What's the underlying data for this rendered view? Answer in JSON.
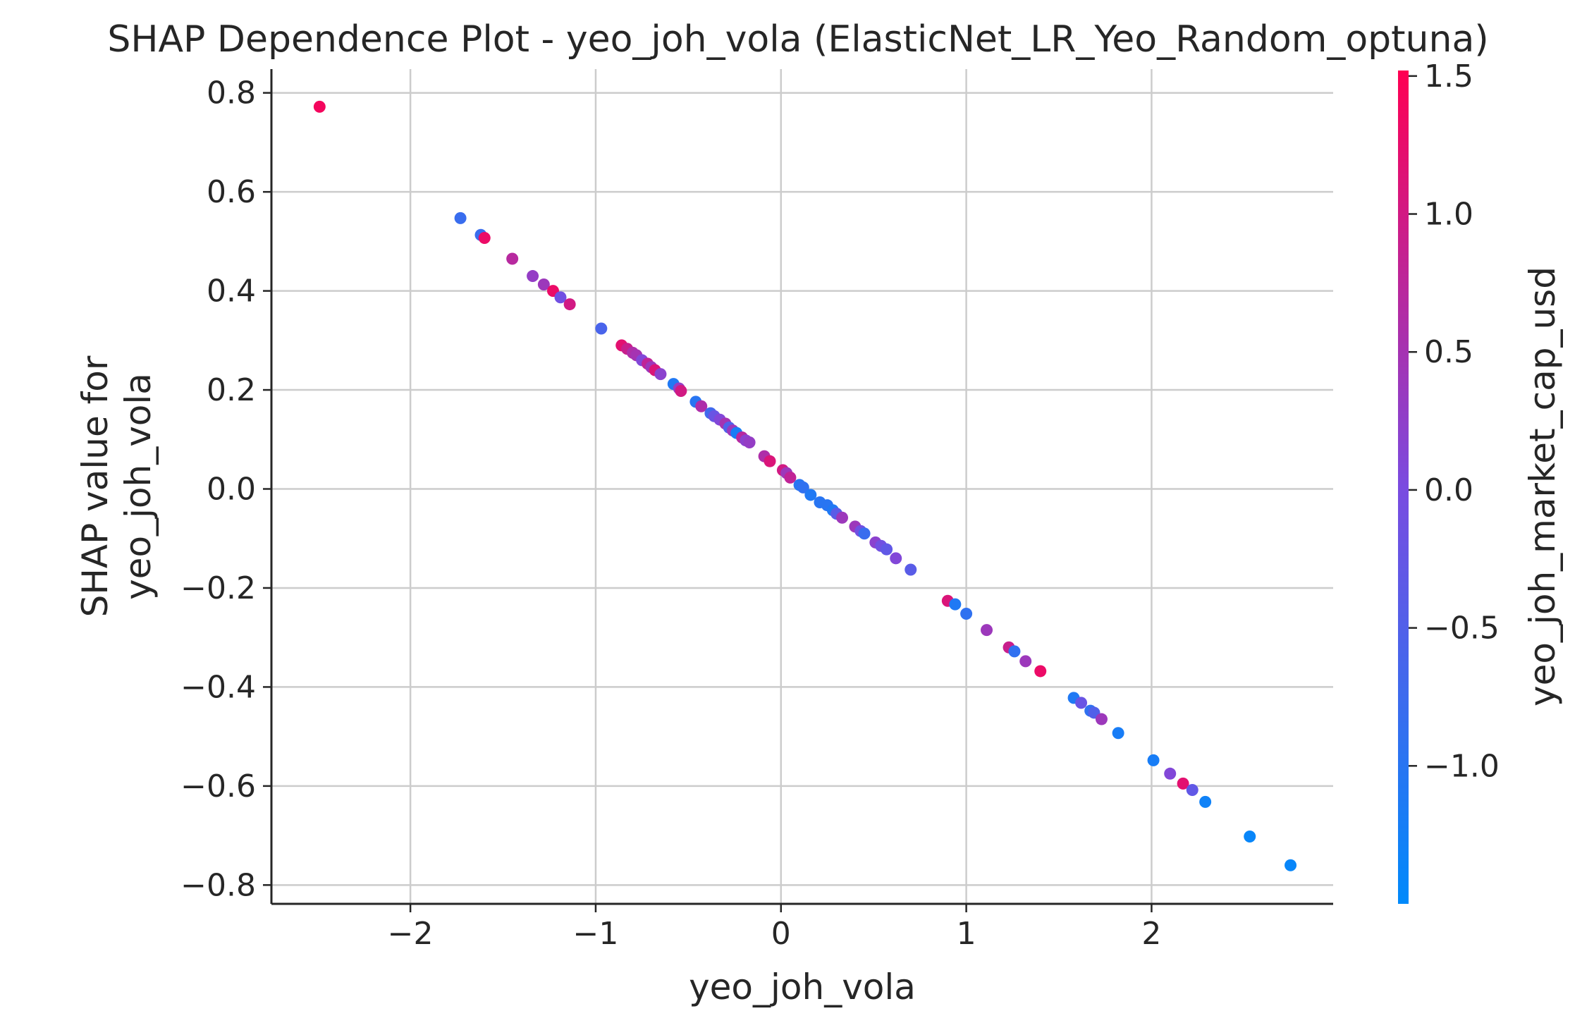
{
  "chart_data": {
    "type": "scatter",
    "title": "SHAP Dependence Plot - yeo_joh_vola (ElasticNet_LR_Yeo_Random_optuna)",
    "xlabel": "yeo_joh_vola",
    "ylabel_lines": [
      "SHAP value for",
      "yeo_joh_vola"
    ],
    "xlim": [
      -2.75,
      2.98
    ],
    "ylim": [
      -0.838,
      0.848
    ],
    "xticks": [
      -2,
      -1,
      0,
      1,
      2
    ],
    "xtick_labels": [
      "−2",
      "−1",
      "0",
      "1",
      "2"
    ],
    "yticks": [
      0.8,
      0.6,
      0.4,
      0.2,
      0.0,
      -0.2,
      -0.4,
      -0.6,
      -0.8
    ],
    "ytick_labels": [
      "0.8",
      "0.6",
      "0.4",
      "0.2",
      "0.0",
      "−0.2",
      "−0.4",
      "−0.6",
      "−0.8"
    ],
    "grid": true,
    "colorbar": {
      "label": "yeo_joh_market_cap_usd",
      "range": [
        -1.5,
        1.52
      ],
      "ticks": [
        1.5,
        1.0,
        0.5,
        0.0,
        -0.5,
        -1.0
      ],
      "tick_labels": [
        "1.5",
        "1.0",
        "0.5",
        "0.0",
        "−0.5",
        "−1.0"
      ],
      "color_low": "#008afb",
      "color_mid": "#7a4be0",
      "color_high": "#ff0052"
    },
    "points": [
      {
        "x": -2.49,
        "y": 0.772,
        "c": 1.4
      },
      {
        "x": -1.73,
        "y": 0.547,
        "c": -0.8
      },
      {
        "x": -1.62,
        "y": 0.513,
        "c": -0.8
      },
      {
        "x": -1.6,
        "y": 0.507,
        "c": 1.3
      },
      {
        "x": -1.45,
        "y": 0.465,
        "c": 0.7
      },
      {
        "x": -1.34,
        "y": 0.43,
        "c": 0.3
      },
      {
        "x": -1.28,
        "y": 0.413,
        "c": 0.4
      },
      {
        "x": -1.23,
        "y": 0.4,
        "c": 1.3
      },
      {
        "x": -1.19,
        "y": 0.387,
        "c": -0.1
      },
      {
        "x": -1.14,
        "y": 0.373,
        "c": 1.0
      },
      {
        "x": -0.97,
        "y": 0.324,
        "c": -0.6
      },
      {
        "x": -0.86,
        "y": 0.29,
        "c": 1.2
      },
      {
        "x": -0.83,
        "y": 0.283,
        "c": 0.9
      },
      {
        "x": -0.8,
        "y": 0.275,
        "c": 0.6
      },
      {
        "x": -0.78,
        "y": 0.27,
        "c": 0.5
      },
      {
        "x": -0.75,
        "y": 0.26,
        "c": 0.1
      },
      {
        "x": -0.72,
        "y": 0.253,
        "c": 0.8
      },
      {
        "x": -0.7,
        "y": 0.246,
        "c": 0.4
      },
      {
        "x": -0.68,
        "y": 0.24,
        "c": 1.1
      },
      {
        "x": -0.65,
        "y": 0.232,
        "c": 0.2
      },
      {
        "x": -0.58,
        "y": 0.212,
        "c": -1.1
      },
      {
        "x": -0.55,
        "y": 0.203,
        "c": 0.3
      },
      {
        "x": -0.54,
        "y": 0.198,
        "c": 1.0
      },
      {
        "x": -0.46,
        "y": 0.176,
        "c": -1.0
      },
      {
        "x": -0.43,
        "y": 0.167,
        "c": 0.6
      },
      {
        "x": -0.38,
        "y": 0.153,
        "c": -0.7
      },
      {
        "x": -0.36,
        "y": 0.147,
        "c": -0.2
      },
      {
        "x": -0.33,
        "y": 0.14,
        "c": 0.1
      },
      {
        "x": -0.3,
        "y": 0.132,
        "c": 0.5
      },
      {
        "x": -0.28,
        "y": 0.124,
        "c": -0.5
      },
      {
        "x": -0.26,
        "y": 0.118,
        "c": 0.4
      },
      {
        "x": -0.24,
        "y": 0.113,
        "c": -1.2
      },
      {
        "x": -0.21,
        "y": 0.104,
        "c": 0.7
      },
      {
        "x": -0.19,
        "y": 0.098,
        "c": 0.2
      },
      {
        "x": -0.17,
        "y": 0.094,
        "c": 0.3
      },
      {
        "x": -0.09,
        "y": 0.066,
        "c": 0.6
      },
      {
        "x": -0.06,
        "y": 0.056,
        "c": 1.1
      },
      {
        "x": 0.01,
        "y": 0.038,
        "c": 1.0
      },
      {
        "x": 0.03,
        "y": 0.032,
        "c": 0.4
      },
      {
        "x": 0.05,
        "y": 0.023,
        "c": 0.8
      },
      {
        "x": 0.1,
        "y": 0.008,
        "c": -1.0
      },
      {
        "x": 0.12,
        "y": 0.003,
        "c": -0.9
      },
      {
        "x": 0.16,
        "y": -0.012,
        "c": -1.1
      },
      {
        "x": 0.21,
        "y": -0.027,
        "c": -1.0
      },
      {
        "x": 0.25,
        "y": -0.033,
        "c": -1.0
      },
      {
        "x": 0.28,
        "y": -0.043,
        "c": -1.1
      },
      {
        "x": 0.3,
        "y": -0.05,
        "c": -0.4
      },
      {
        "x": 0.33,
        "y": -0.058,
        "c": 0.4
      },
      {
        "x": 0.4,
        "y": -0.076,
        "c": 0.4
      },
      {
        "x": 0.43,
        "y": -0.085,
        "c": -0.1
      },
      {
        "x": 0.45,
        "y": -0.09,
        "c": -0.8
      },
      {
        "x": 0.51,
        "y": -0.108,
        "c": 0.2
      },
      {
        "x": 0.54,
        "y": -0.115,
        "c": -0.1
      },
      {
        "x": 0.57,
        "y": -0.122,
        "c": -0.3
      },
      {
        "x": 0.62,
        "y": -0.14,
        "c": 0.1
      },
      {
        "x": 0.7,
        "y": -0.163,
        "c": -0.4
      },
      {
        "x": 0.9,
        "y": -0.226,
        "c": 1.1
      },
      {
        "x": 0.94,
        "y": -0.233,
        "c": -1.1
      },
      {
        "x": 1.0,
        "y": -0.252,
        "c": -0.9
      },
      {
        "x": 1.11,
        "y": -0.285,
        "c": 0.4
      },
      {
        "x": 1.23,
        "y": -0.32,
        "c": 0.9
      },
      {
        "x": 1.26,
        "y": -0.328,
        "c": -0.9
      },
      {
        "x": 1.32,
        "y": -0.348,
        "c": 0.4
      },
      {
        "x": 1.4,
        "y": -0.368,
        "c": 1.3
      },
      {
        "x": 1.58,
        "y": -0.422,
        "c": -1.1
      },
      {
        "x": 1.62,
        "y": -0.432,
        "c": -0.2
      },
      {
        "x": 1.67,
        "y": -0.448,
        "c": -0.9
      },
      {
        "x": 1.69,
        "y": -0.452,
        "c": -0.5
      },
      {
        "x": 1.73,
        "y": -0.465,
        "c": 0.4
      },
      {
        "x": 1.82,
        "y": -0.493,
        "c": -1.2
      },
      {
        "x": 2.01,
        "y": -0.548,
        "c": -1.2
      },
      {
        "x": 2.1,
        "y": -0.575,
        "c": 0.1
      },
      {
        "x": 2.17,
        "y": -0.595,
        "c": 1.2
      },
      {
        "x": 2.22,
        "y": -0.608,
        "c": -0.3
      },
      {
        "x": 2.29,
        "y": -0.632,
        "c": -1.3
      },
      {
        "x": 2.53,
        "y": -0.702,
        "c": -1.4
      },
      {
        "x": 2.75,
        "y": -0.76,
        "c": -1.4
      }
    ]
  }
}
